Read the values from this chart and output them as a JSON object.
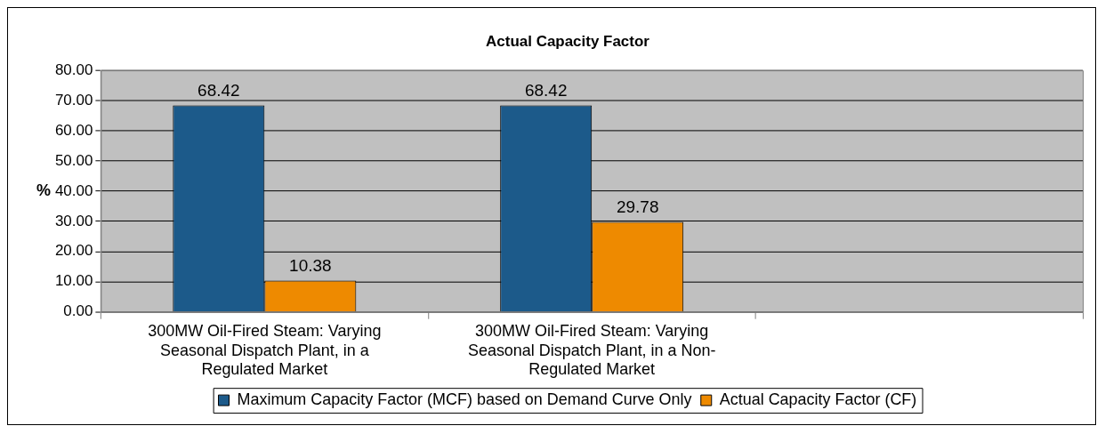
{
  "chart_data": {
    "type": "bar",
    "title": "Actual Capacity Factor",
    "ylabel": "%",
    "categories": [
      "300MW Oil-Fired Steam: Varying Seasonal Dispatch Plant, in a Regulated Market",
      "300MW Oil-Fired Steam: Varying Seasonal Dispatch Plant, in a Non-Regulated Market",
      null
    ],
    "series": [
      {
        "name": "Maximum Capacity Factor (MCF) based on Demand Curve Only",
        "color": "#1c5a8a",
        "values": [
          68.42,
          68.42,
          null
        ]
      },
      {
        "name": "Actual Capacity Factor (CF)",
        "color": "#ee8a00",
        "values": [
          10.38,
          29.78,
          null
        ]
      }
    ],
    "ylim": [
      0,
      80
    ],
    "yticks": [
      {
        "value": 0,
        "label": "0.00"
      },
      {
        "value": 10,
        "label": "10.00"
      },
      {
        "value": 20,
        "label": "20.00"
      },
      {
        "value": 30,
        "label": "30.00"
      },
      {
        "value": 40,
        "label": "40.00"
      },
      {
        "value": 50,
        "label": "50.00"
      },
      {
        "value": 60,
        "label": "60.00"
      },
      {
        "value": 70,
        "label": "70.00"
      },
      {
        "value": 80,
        "label": "80.00"
      }
    ],
    "grid": "y",
    "legend": "bottom",
    "data_labels": true
  }
}
